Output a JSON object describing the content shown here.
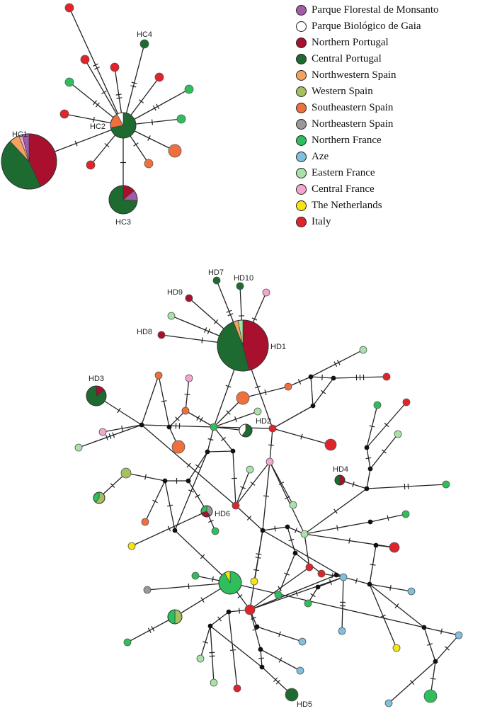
{
  "colors": {
    "monsanto": "#a25ba7",
    "gaia": "#ffffff",
    "north_portugal": "#a8102d",
    "central_portugal": "#1d6b30",
    "nw_spain": "#f4a35f",
    "w_spain": "#a5c05e",
    "se_spain": "#ef6f3d",
    "ne_spain": "#999999",
    "n_france": "#2ebf5c",
    "aze": "#7fbfe0",
    "e_france": "#a9e2a8",
    "c_france": "#f2a7cf",
    "netherlands": "#f7e510",
    "italy": "#e0242c",
    "median": "#111111"
  },
  "legend": {
    "items": [
      {
        "label": "Parque Florestal de Monsanto",
        "color": "#a25ba7"
      },
      {
        "label": "Parque Biológico de Gaia",
        "color": "#ffffff"
      },
      {
        "label": "Northern Portugal",
        "color": "#a8102d"
      },
      {
        "label": "Central Portugal",
        "color": "#1d6b30"
      },
      {
        "label": "Northwestern Spain",
        "color": "#f4a35f"
      },
      {
        "label": "Western Spain",
        "color": "#a5c05e"
      },
      {
        "label": "Southeastern Spain",
        "color": "#ef6f3d"
      },
      {
        "label": "Northeastern Spain",
        "color": "#999999"
      },
      {
        "label": "Northern France",
        "color": "#2ebf5c"
      },
      {
        "label": "Aze",
        "color": "#7fbfe0"
      },
      {
        "label": "Eastern France",
        "color": "#a9e2a8"
      },
      {
        "label": "Central France",
        "color": "#f2a7cf"
      },
      {
        "label": "The Netherlands",
        "color": "#f7e510"
      },
      {
        "label": "Italy",
        "color": "#e0242c"
      }
    ]
  },
  "network_top": {
    "labels": [
      "HC1",
      "HC2",
      "HC3",
      "HC4"
    ]
  },
  "network_bottom": {
    "labels": [
      "HD1",
      "HD2",
      "HD3",
      "HD4",
      "HD5",
      "HD6",
      "HD7",
      "HD8",
      "HD9",
      "HD10"
    ]
  }
}
